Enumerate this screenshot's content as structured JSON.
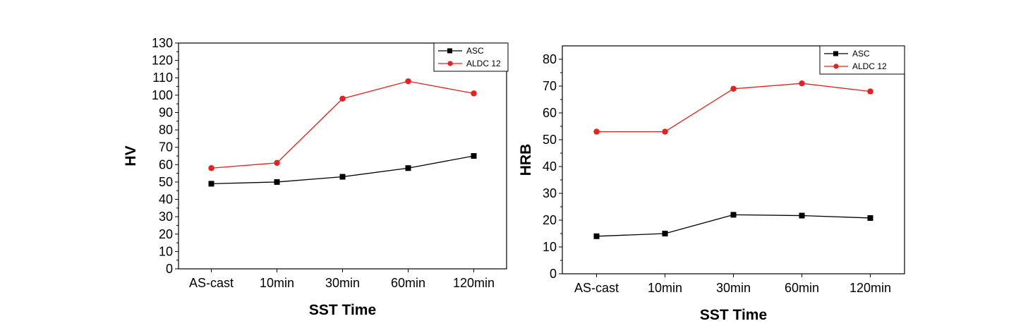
{
  "chart_data": [
    {
      "type": "line",
      "title": "",
      "xlabel": "SST Time",
      "ylabel": "HV",
      "categories": [
        "AS-cast",
        "10min",
        "30min",
        "60min",
        "120min"
      ],
      "ylim": [
        0,
        130
      ],
      "ytick_step": 10,
      "grid": false,
      "legend_position": "top-right",
      "series": [
        {
          "name": "ASC",
          "color": "#000000",
          "marker": "square",
          "values": [
            49,
            50,
            53,
            58,
            65
          ]
        },
        {
          "name": "ALDC 12",
          "color": "#e8201e",
          "marker": "circle",
          "values": [
            58,
            61,
            98,
            108,
            101
          ]
        }
      ]
    },
    {
      "type": "line",
      "title": "",
      "xlabel": "SST Time",
      "ylabel": "HRB",
      "categories": [
        "AS-cast",
        "10min",
        "30min",
        "60min",
        "120min"
      ],
      "ylim": [
        0,
        85
      ],
      "ytick_step": 10,
      "grid": false,
      "legend_position": "top-right",
      "series": [
        {
          "name": "ASC",
          "color": "#000000",
          "marker": "square",
          "values": [
            14,
            15,
            22,
            21.7,
            20.8
          ]
        },
        {
          "name": "ALDC 12",
          "color": "#e8201e",
          "marker": "circle",
          "values": [
            53,
            53,
            69,
            71,
            68
          ]
        }
      ]
    }
  ]
}
